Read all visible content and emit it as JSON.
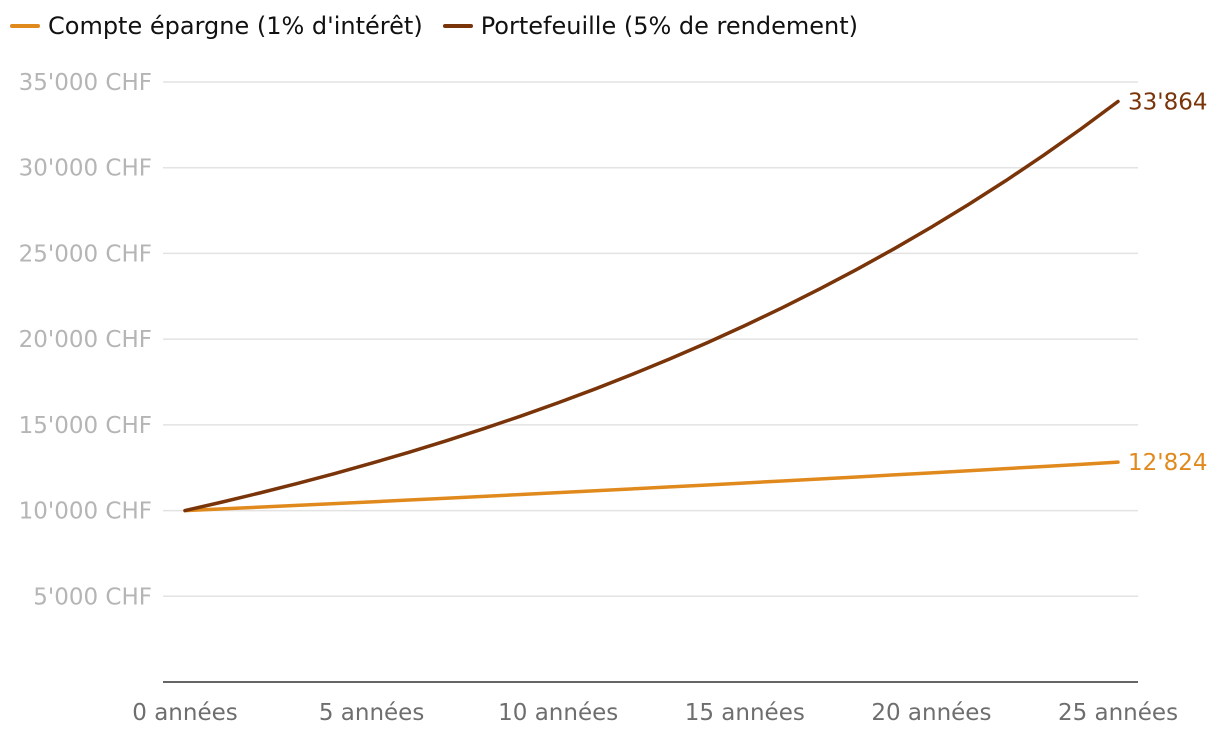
{
  "legend": {
    "items": [
      {
        "label": "Compte épargne (1% d'intérêt)",
        "color": "#E08A1E"
      },
      {
        "label": "Portefeuille (5% de rendement)",
        "color": "#7A3409"
      }
    ]
  },
  "chart_data": {
    "type": "line",
    "x": [
      0,
      1,
      2,
      3,
      4,
      5,
      6,
      7,
      8,
      9,
      10,
      11,
      12,
      13,
      14,
      15,
      16,
      17,
      18,
      19,
      20,
      21,
      22,
      23,
      24,
      25
    ],
    "series": [
      {
        "name": "Compte épargne (1% d'intérêt)",
        "color": "#E08A1E",
        "end_label": "12'824",
        "values": [
          10000,
          10100,
          10201,
          10303,
          10406,
          10510,
          10615,
          10721,
          10829,
          10937,
          11046,
          11157,
          11268,
          11381,
          11495,
          11610,
          11726,
          11843,
          11961,
          12081,
          12202,
          12324,
          12447,
          12572,
          12697,
          12824
        ]
      },
      {
        "name": "Portefeuille (5% de rendement)",
        "color": "#7A3409",
        "end_label": "33'864",
        "values": [
          10000,
          10500,
          11025,
          11576,
          12155,
          12763,
          13401,
          14071,
          14775,
          15513,
          16289,
          17103,
          17959,
          18856,
          19799,
          20789,
          21829,
          22920,
          24066,
          25270,
          26533,
          27860,
          29253,
          30715,
          32251,
          33864
        ]
      }
    ],
    "x_ticks": [
      {
        "value": 0,
        "label": "0 années"
      },
      {
        "value": 5,
        "label": "5 années"
      },
      {
        "value": 10,
        "label": "10 années"
      },
      {
        "value": 15,
        "label": "15 années"
      },
      {
        "value": 20,
        "label": "20 années"
      },
      {
        "value": 25,
        "label": "25 années"
      }
    ],
    "y_ticks": [
      {
        "value": 5000,
        "label": "5'000 CHF"
      },
      {
        "value": 10000,
        "label": "10'000 CHF"
      },
      {
        "value": 15000,
        "label": "15'000 CHF"
      },
      {
        "value": 20000,
        "label": "20'000 CHF"
      },
      {
        "value": 25000,
        "label": "25'000 CHF"
      },
      {
        "value": 30000,
        "label": "30'000 CHF"
      },
      {
        "value": 35000,
        "label": "35'000 CHF"
      }
    ],
    "ylim": [
      0,
      35000
    ],
    "xlim": [
      0,
      25
    ],
    "grid": true,
    "legend_position": "top-left",
    "title": "",
    "xlabel": "",
    "ylabel": ""
  }
}
